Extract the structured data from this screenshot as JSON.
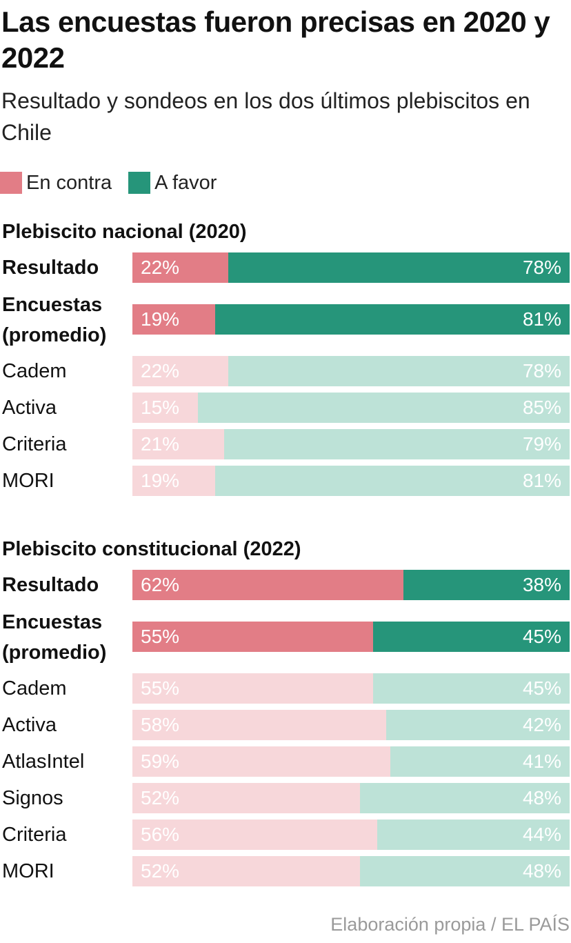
{
  "title": "Las encuestas fueron precisas en 2020 y 2022",
  "subtitle": "Resultado y sondeos en los dos últimos plebiscitos en Chile",
  "source": "Elaboración propia / EL PAÍS",
  "colors": {
    "contra_strong": "#e27d86",
    "favor_strong": "#26957a",
    "contra_light": "#f7d7da",
    "favor_light": "#bde2d7"
  },
  "legend": [
    {
      "label": "En contra",
      "color": "#e27d86"
    },
    {
      "label": "A favor",
      "color": "#26957a"
    }
  ],
  "chart_data": {
    "type": "bar",
    "orientation": "horizontal",
    "stacked": true,
    "unit": "%",
    "series": [
      "En contra",
      "A favor"
    ],
    "groups": [
      {
        "title": "Plebiscito nacional (2020)",
        "rows": [
          {
            "label": "Resultado",
            "emphasis": true,
            "contra": 22,
            "favor": 78,
            "contra_text": "22%",
            "favor_text": "78%"
          },
          {
            "label": "Encuestas (promedio)",
            "emphasis": true,
            "contra": 19,
            "favor": 81,
            "contra_text": "19%",
            "favor_text": "81%"
          },
          {
            "label": "Cadem",
            "emphasis": false,
            "contra": 22,
            "favor": 78,
            "contra_text": "22%",
            "favor_text": "78%"
          },
          {
            "label": "Activa",
            "emphasis": false,
            "contra": 15,
            "favor": 85,
            "contra_text": "15%",
            "favor_text": "85%"
          },
          {
            "label": "Criteria",
            "emphasis": false,
            "contra": 21,
            "favor": 79,
            "contra_text": "21%",
            "favor_text": "79%"
          },
          {
            "label": "MORI",
            "emphasis": false,
            "contra": 19,
            "favor": 81,
            "contra_text": "19%",
            "favor_text": "81%"
          }
        ]
      },
      {
        "title": "Plebiscito constitucional (2022)",
        "rows": [
          {
            "label": "Resultado",
            "emphasis": true,
            "contra": 62,
            "favor": 38,
            "contra_text": "62%",
            "favor_text": "38%"
          },
          {
            "label": "Encuestas (promedio)",
            "emphasis": true,
            "contra": 55,
            "favor": 45,
            "contra_text": "55%",
            "favor_text": "45%"
          },
          {
            "label": "Cadem",
            "emphasis": false,
            "contra": 55,
            "favor": 45,
            "contra_text": "55%",
            "favor_text": "45%"
          },
          {
            "label": "Activa",
            "emphasis": false,
            "contra": 58,
            "favor": 42,
            "contra_text": "58%",
            "favor_text": "42%"
          },
          {
            "label": "AtlasIntel",
            "emphasis": false,
            "contra": 59,
            "favor": 41,
            "contra_text": "59%",
            "favor_text": "41%"
          },
          {
            "label": "Signos",
            "emphasis": false,
            "contra": 52,
            "favor": 48,
            "contra_text": "52%",
            "favor_text": "48%"
          },
          {
            "label": "Criteria",
            "emphasis": false,
            "contra": 56,
            "favor": 44,
            "contra_text": "56%",
            "favor_text": "44%"
          },
          {
            "label": "MORI",
            "emphasis": false,
            "contra": 52,
            "favor": 48,
            "contra_text": "52%",
            "favor_text": "48%"
          }
        ]
      }
    ]
  }
}
